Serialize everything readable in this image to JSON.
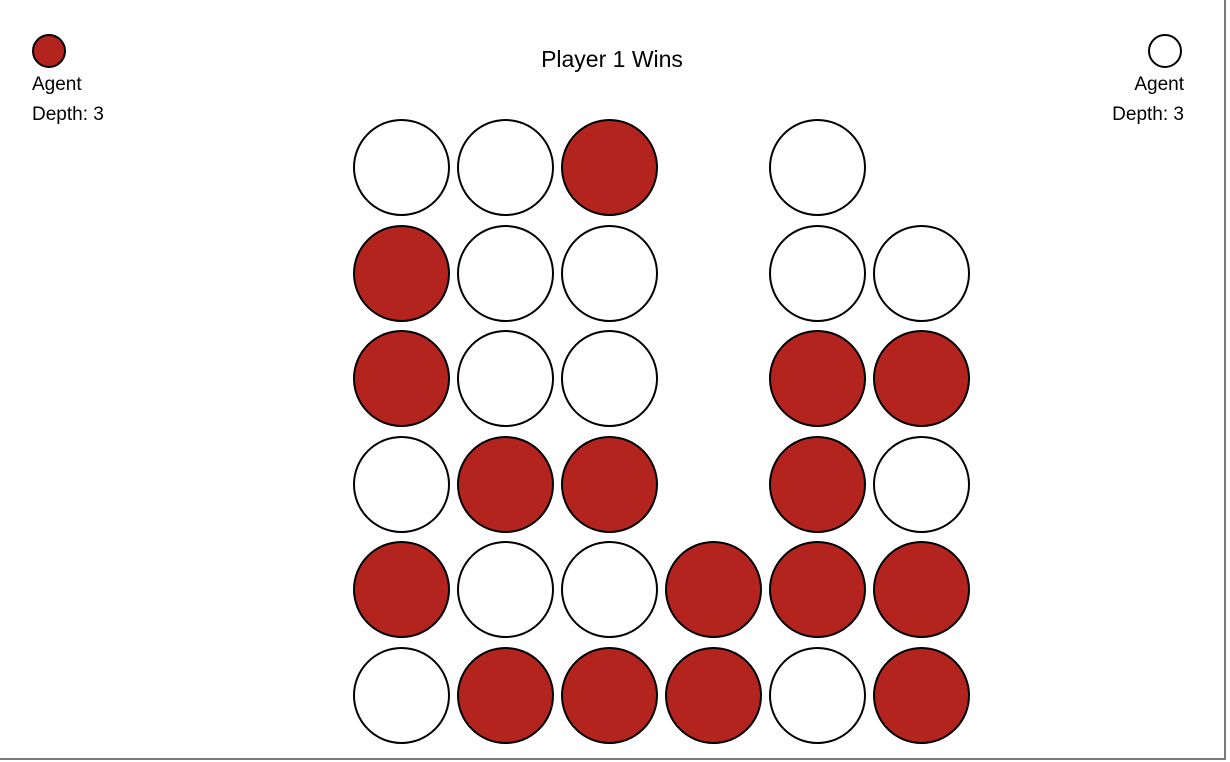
{
  "colors": {
    "red": "#b3241e",
    "white": "#ffffff"
  },
  "player1": {
    "name": "Agent",
    "depth": "Depth: 3",
    "color": "red"
  },
  "player2": {
    "name": "Agent",
    "depth": "Depth: 3",
    "color": "white"
  },
  "status": "Player 1 Wins",
  "board": {
    "columns": 6,
    "rows": 6,
    "cells": [
      [
        "white",
        "white",
        "red",
        null,
        "white",
        null
      ],
      [
        "red",
        "white",
        "white",
        null,
        "white",
        "white"
      ],
      [
        "red",
        "white",
        "white",
        null,
        "red",
        "red"
      ],
      [
        "white",
        "red",
        "red",
        null,
        "red",
        "white"
      ],
      [
        "red",
        "white",
        "white",
        "red",
        "red",
        "red"
      ],
      [
        "white",
        "red",
        "red",
        "red",
        "white",
        "red"
      ]
    ]
  }
}
